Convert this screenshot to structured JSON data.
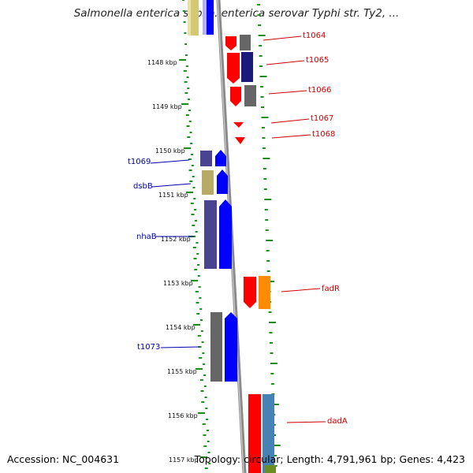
{
  "title": "Salmonella enterica subsp. enterica serovar Typhi str. Ty2, ...",
  "footer": {
    "accession": "Accession: NC_004631",
    "topology": "Topology: circular; Length: 4,791,961 bp; Genes: 4,423"
  },
  "kbp_labels": [
    "1148 kbp",
    "1149 kbp",
    "1150 kbp",
    "1151 kbp",
    "1152 kbp",
    "1153 kbp",
    "1154 kbp",
    "1155 kbp",
    "1156 kbp",
    "1157 kbp"
  ],
  "gene_labels": {
    "t1064": "t1064",
    "t1065": "t1065",
    "t1066": "t1066",
    "t1067": "t1067",
    "t1068": "t1068",
    "t1069": "t1069",
    "dsbB": "dsbB",
    "nhaB": "nhaB",
    "t1073": "t1073",
    "fadR": "fadR",
    "dadA": "dadA"
  },
  "colors": {
    "forward_label": "#cc0000",
    "reverse_label": "#0000aa",
    "tick": "#1e8c1e",
    "backbone": "#8a8a8a",
    "red": "#ff0000",
    "blue": "#0000ff",
    "navy": "#1a1a7a",
    "gray": "#666666",
    "khaki": "#b8aa66",
    "slate": "#4a4490",
    "orange": "#ff8c00",
    "steelblue": "#4682b4"
  }
}
